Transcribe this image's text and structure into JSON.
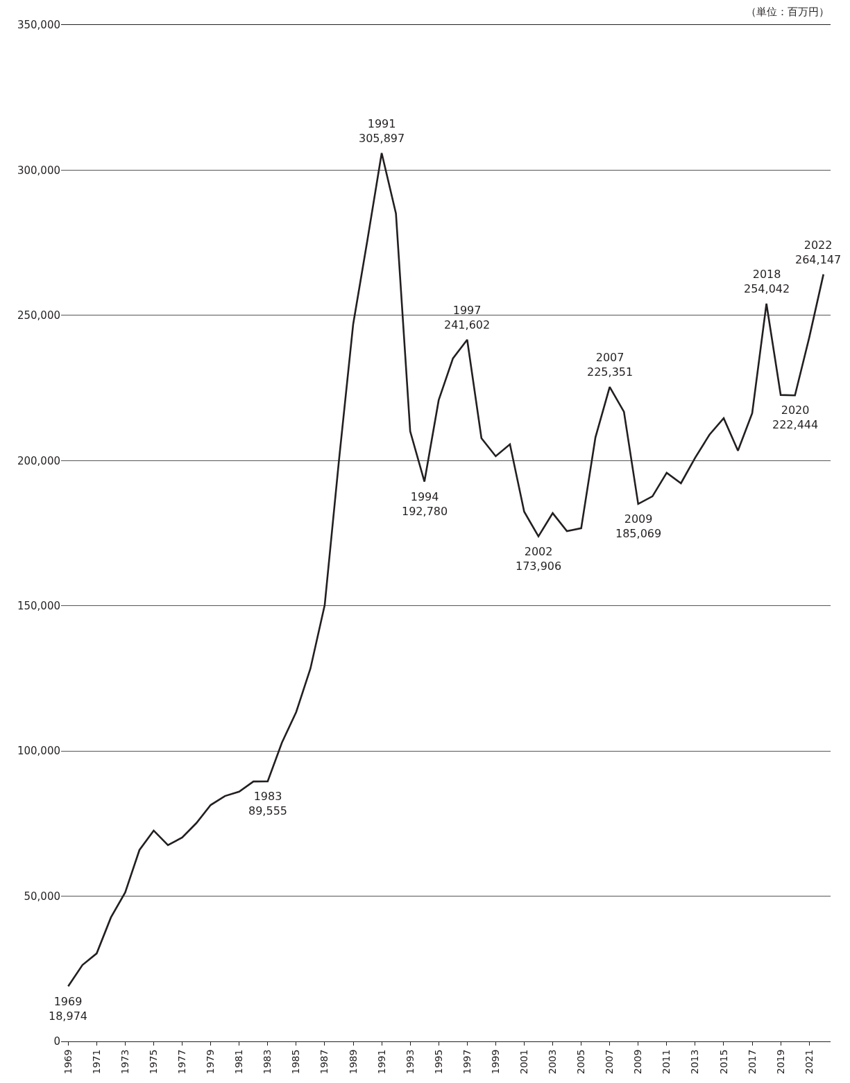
{
  "chart_data": {
    "type": "line",
    "x": [
      1969,
      1970,
      1971,
      1972,
      1973,
      1974,
      1975,
      1976,
      1977,
      1978,
      1979,
      1980,
      1981,
      1982,
      1983,
      1984,
      1985,
      1986,
      1987,
      1988,
      1989,
      1990,
      1991,
      1992,
      1993,
      1994,
      1995,
      1996,
      1997,
      1998,
      1999,
      2000,
      2001,
      2002,
      2003,
      2004,
      2005,
      2006,
      2007,
      2008,
      2009,
      2010,
      2011,
      2012,
      2013,
      2014,
      2015,
      2016,
      2017,
      2018,
      2019,
      2020,
      2021,
      2022
    ],
    "series": [
      {
        "color": "#231f20",
        "values": [
          18974,
          26300,
          30300,
          42700,
          51300,
          65900,
          72600,
          67600,
          70200,
          75200,
          81400,
          84500,
          86000,
          89500,
          89555,
          102900,
          113400,
          128400,
          150200,
          200000,
          247000,
          276000,
          305897,
          285100,
          210100,
          192780,
          220800,
          235200,
          241602,
          207700,
          201500,
          205600,
          182400,
          173906,
          181900,
          175700,
          176700,
          208000,
          225351,
          216800,
          185069,
          187700,
          195800,
          192200,
          201000,
          208900,
          214600,
          203400,
          216300,
          254042,
          222600,
          222444,
          242300,
          264147
        ]
      }
    ],
    "xlim": [
      1968.5,
      2022.5
    ],
    "xticks": [
      1969,
      1971,
      1973,
      1975,
      1977,
      1979,
      1981,
      1983,
      1985,
      1987,
      1989,
      1991,
      1993,
      1995,
      1997,
      1999,
      2001,
      2003,
      2005,
      2007,
      2009,
      2011,
      2013,
      2015,
      2017,
      2019,
      2021
    ],
    "ylim": [
      0,
      350000
    ],
    "yticks": [
      {
        "value": 0,
        "label": "0"
      },
      {
        "value": 50000,
        "label": "50,000"
      },
      {
        "value": 100000,
        "label": "100,000"
      },
      {
        "value": 150000,
        "label": "150,000"
      },
      {
        "value": 200000,
        "label": "200,000"
      },
      {
        "value": 250000,
        "label": "250,000"
      },
      {
        "value": 300000,
        "label": "300,000"
      },
      {
        "value": 350000,
        "label": "350,000"
      }
    ],
    "grid": "y",
    "marker": "none",
    "line_style": "solid",
    "annotations": [
      "（単位：百万円）",
      {
        "text": "1969\n18,974",
        "x": 1969,
        "y": 18974
      },
      {
        "text": "1983\n89,555",
        "x": 1983,
        "y": 89555
      },
      {
        "text": "1991\n305,897",
        "x": 1991,
        "y": 305897
      },
      {
        "text": "1994\n192,780",
        "x": 1994,
        "y": 192780
      },
      {
        "text": "1997\n241,602",
        "x": 1997,
        "y": 241602
      },
      {
        "text": "2002\n173,906",
        "x": 2002,
        "y": 173906
      },
      {
        "text": "2007\n225,351",
        "x": 2007,
        "y": 225351
      },
      {
        "text": "2009\n185,069",
        "x": 2009,
        "y": 185069
      },
      {
        "text": "2018\n254,042",
        "x": 2018,
        "y": 254042
      },
      {
        "text": "2020\n222,444",
        "x": 2020,
        "y": 222444
      },
      {
        "text": "2022\n264,147",
        "x": 2022,
        "y": 264147
      }
    ]
  }
}
